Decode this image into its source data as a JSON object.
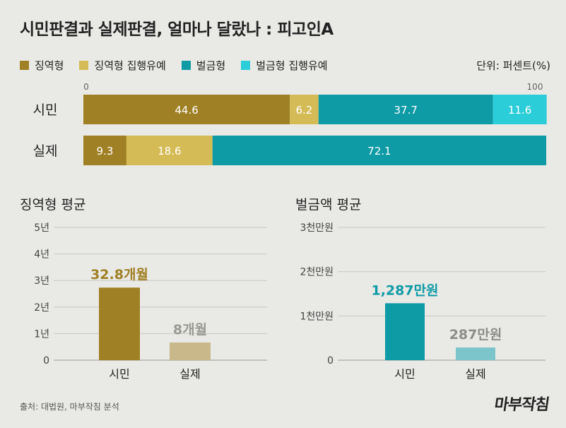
{
  "title": "시민판결과 실제판결, 얼마나 달랐나 : 피고인A",
  "unit": "단위: 퍼센트(%)",
  "source": "출처: 대법원, 마부작침 분석",
  "logo": "마부작침",
  "colors": {
    "prison": "#a08024",
    "prison_suspended": "#d4bb55",
    "fine": "#0e9ba6",
    "fine_suspended": "#2bcdd8",
    "fine_pale": "#7cc6cb",
    "sentence_pale": "#c9b98a",
    "grid": "#c8c8c4"
  },
  "chart_data": [
    {
      "type": "bar",
      "orientation": "horizontal",
      "stacked": true,
      "categories": [
        "시민",
        "실제"
      ],
      "xlim": [
        0,
        100
      ],
      "tick_labels": [
        "0",
        "100"
      ],
      "series": [
        {
          "name": "징역형",
          "values": [
            44.6,
            9.3
          ],
          "color": "#a08024"
        },
        {
          "name": "징역형 집행유예",
          "values": [
            6.2,
            18.6
          ],
          "color": "#d4bb55"
        },
        {
          "name": "벌금형",
          "values": [
            37.7,
            72.1
          ],
          "color": "#0e9ba6"
        },
        {
          "name": "벌금형 집행유예",
          "values": [
            11.6,
            0
          ],
          "color": "#2bcdd8"
        }
      ],
      "labels": [
        [
          "44.6",
          "9.3"
        ],
        [
          "6.2",
          "18.6"
        ],
        [
          "37.7",
          "72.1"
        ],
        [
          "11.6",
          ""
        ]
      ]
    },
    {
      "type": "bar",
      "title": "징역형 평균",
      "categories": [
        "시민",
        "실제"
      ],
      "values": [
        32.8,
        8
      ],
      "unit": "개월",
      "value_labels": [
        "32.8개월",
        "8개월"
      ],
      "ylim": [
        0,
        60
      ],
      "ticks": [
        0,
        12,
        24,
        36,
        48,
        60
      ],
      "tick_labels": [
        "0",
        "1년",
        "2년",
        "3년",
        "4년",
        "5년"
      ]
    },
    {
      "type": "bar",
      "title": "벌금액 평균",
      "categories": [
        "시민",
        "실제"
      ],
      "values": [
        1287,
        287
      ],
      "unit": "만원",
      "value_labels": [
        "1,287만원",
        "287만원"
      ],
      "ylim": [
        0,
        3000
      ],
      "ticks": [
        0,
        1000,
        2000,
        3000
      ],
      "tick_labels": [
        "0",
        "1천만원",
        "2천만원",
        "3천만원"
      ]
    }
  ]
}
